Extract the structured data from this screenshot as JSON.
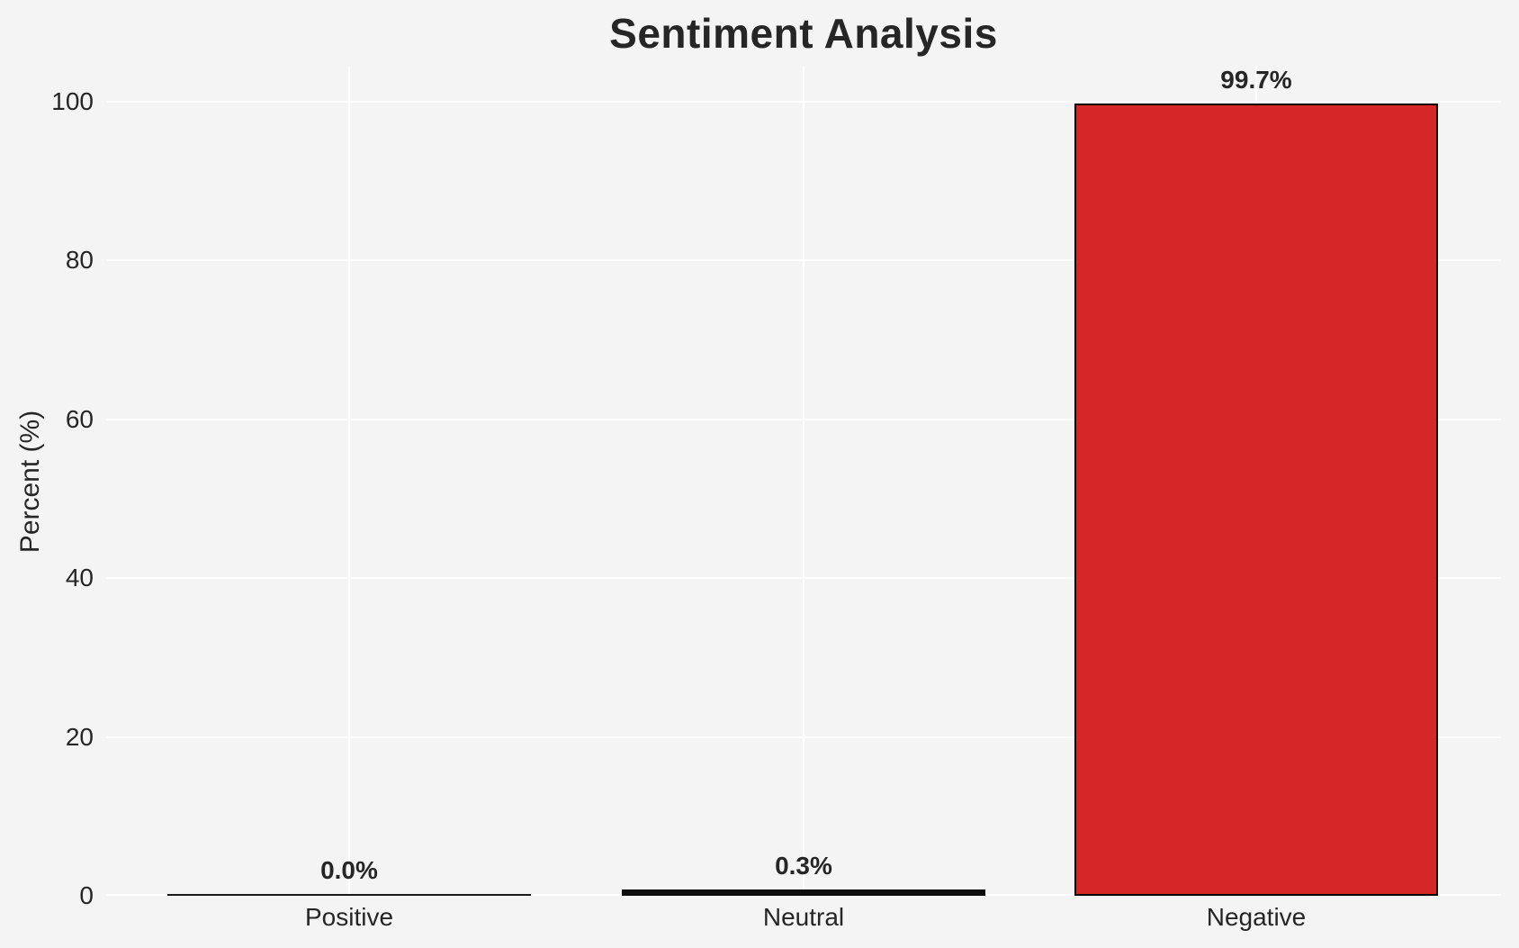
{
  "page": {
    "background_color": "#f5f4f4"
  },
  "chart_data": {
    "type": "bar",
    "title": "Sentiment Analysis",
    "xlabel": "",
    "ylabel": "Percent (%)",
    "categories": [
      "Positive",
      "Neutral",
      "Negative"
    ],
    "values": [
      0.0,
      0.3,
      99.7
    ],
    "bar_value_labels": [
      "0.0%",
      "0.3%",
      "99.7%"
    ],
    "bar_fill_colors": [
      "none",
      "none",
      "#d62728"
    ],
    "bar_edge_color": "#000000",
    "yticks": [
      0,
      20,
      40,
      60,
      80,
      100
    ],
    "ylim": [
      0,
      104.4
    ],
    "grid": true,
    "gridline_color": "#ffffff",
    "legend_position": "none",
    "text_color": "#262626"
  }
}
